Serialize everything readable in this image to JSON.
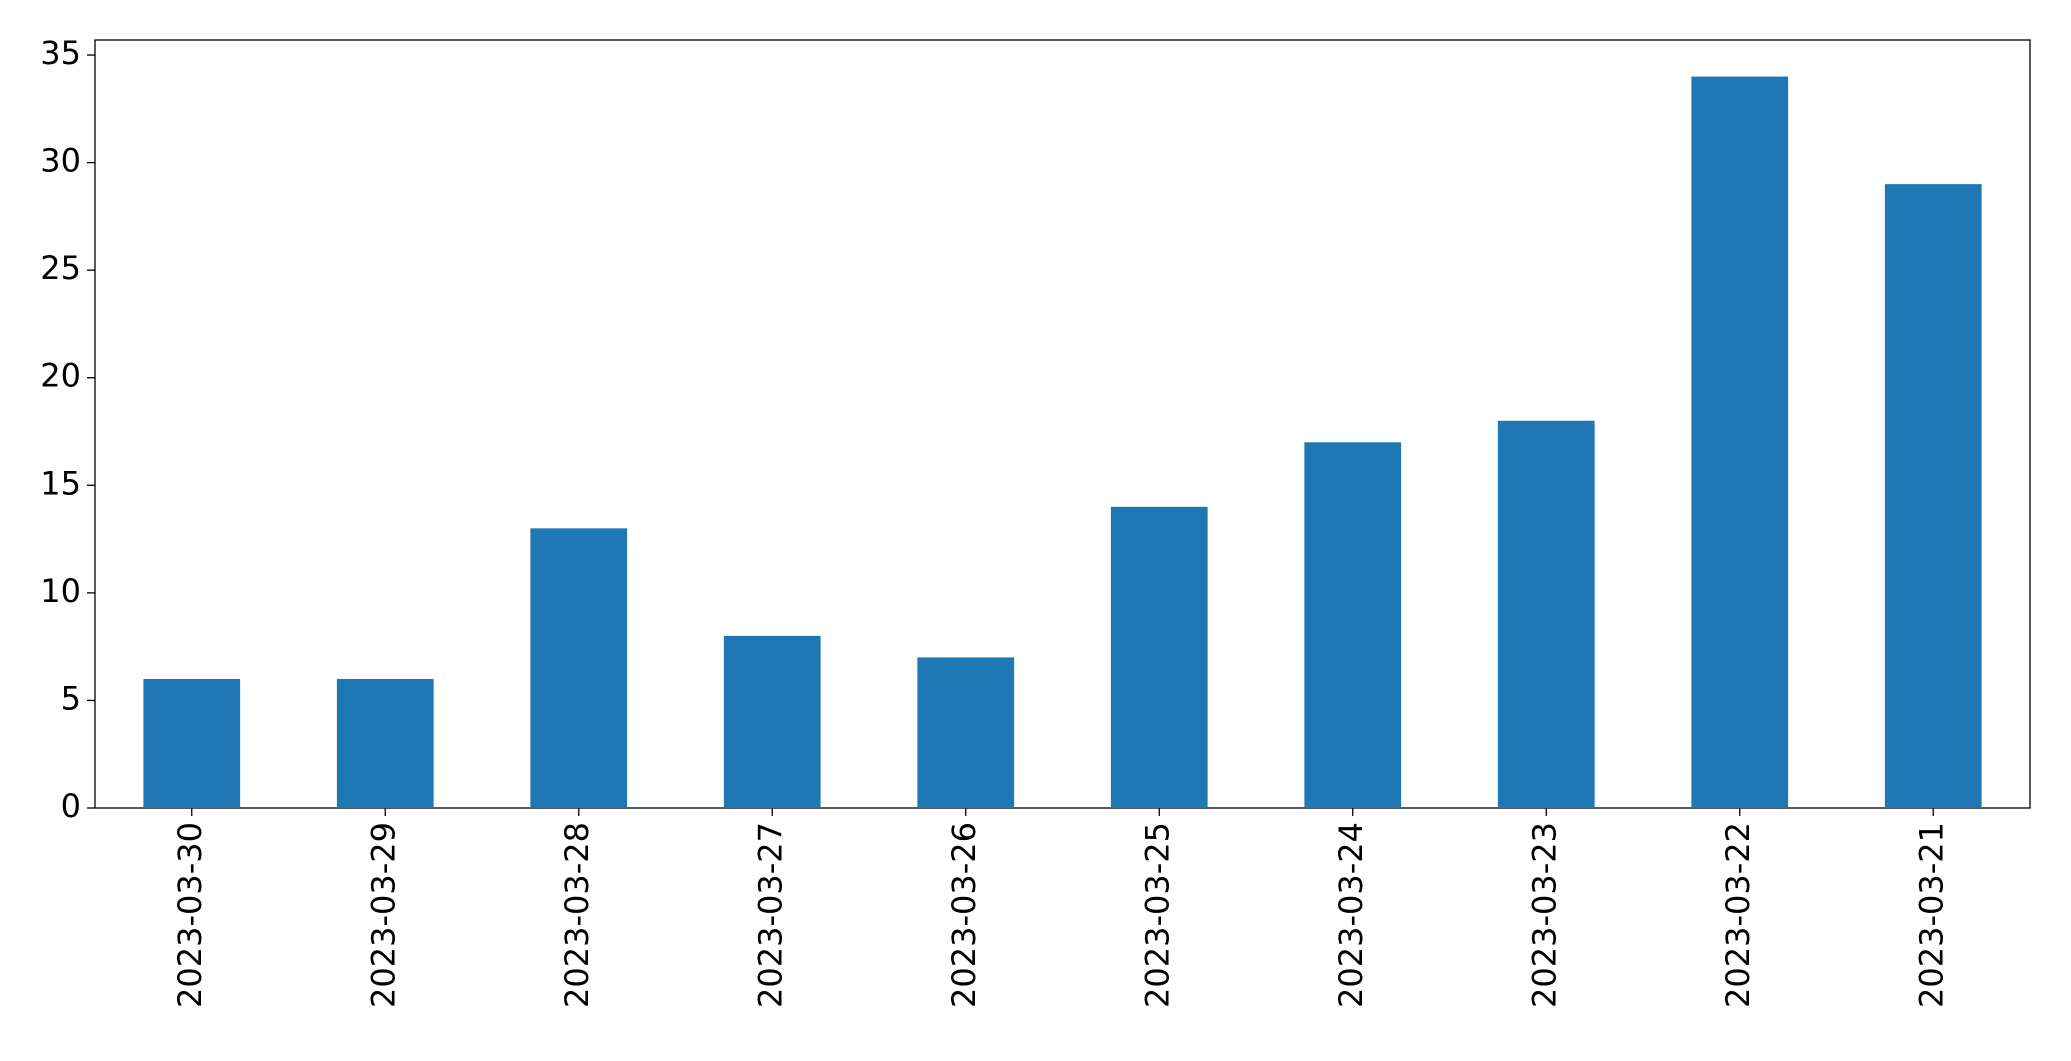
{
  "chart_data": {
    "type": "bar",
    "categories": [
      "2023-03-30",
      "2023-03-29",
      "2023-03-28",
      "2023-03-27",
      "2023-03-26",
      "2023-03-25",
      "2023-03-24",
      "2023-03-23",
      "2023-03-22",
      "2023-03-21"
    ],
    "values": [
      6,
      6,
      13,
      8,
      7,
      14,
      17,
      18,
      34,
      29
    ],
    "color": "#1f77b4",
    "ylim": [
      0,
      35.7
    ],
    "yticks": [
      0,
      5,
      10,
      15,
      20,
      25,
      30,
      35
    ],
    "grid": false
  }
}
